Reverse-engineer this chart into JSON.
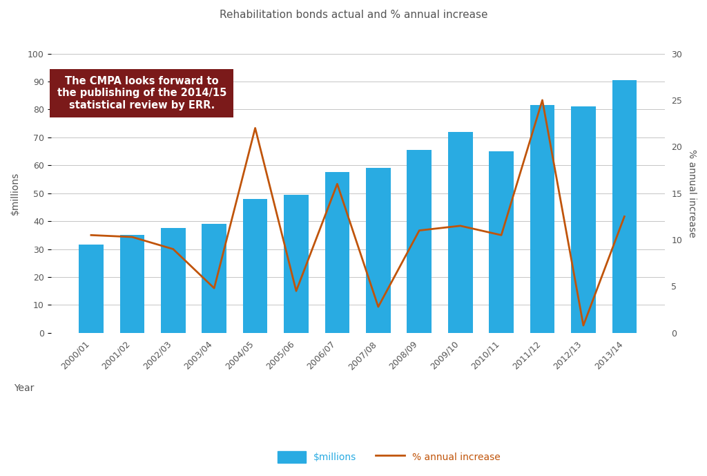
{
  "title": "Rehabilitation bonds actual and % annual increase",
  "categories": [
    "2000/01",
    "2001/02",
    "2002/03",
    "2003/04",
    "2004/05",
    "2005/06",
    "2006/07",
    "2007/08",
    "2008/09",
    "2009/10",
    "2010/11",
    "2011/12",
    "2012/13",
    "2013/14"
  ],
  "bar_values": [
    31.5,
    35.0,
    37.5,
    39.0,
    48.0,
    49.5,
    57.5,
    59.0,
    65.5,
    72.0,
    65.0,
    81.5,
    81.0,
    90.5
  ],
  "line_values": [
    10.5,
    10.3,
    9.0,
    4.8,
    22.0,
    4.5,
    16.0,
    2.8,
    11.0,
    11.5,
    10.5,
    25.0,
    0.8,
    12.5
  ],
  "bar_color": "#29ABE2",
  "line_color": "#C0540A",
  "ylim_left": [
    0,
    100
  ],
  "ylim_right": [
    0,
    30
  ],
  "yticks_left": [
    0,
    10,
    20,
    30,
    40,
    50,
    60,
    70,
    80,
    90,
    100
  ],
  "yticks_right": [
    0,
    5,
    10,
    15,
    20,
    25,
    30
  ],
  "ylabel_left": "$millions",
  "ylabel_right": "% annual increase",
  "xlabel": "Year",
  "annotation_text": "The CMPA looks forward to\nthe publishing of the 2014/15\nstatistical review by ERR.",
  "annotation_bg": "#7B1A1A",
  "annotation_text_color": "#FFFFFF",
  "background_color": "#FFFFFF",
  "grid_color": "#BBBBBB",
  "title_color": "#555555",
  "axis_label_color": "#555555",
  "tick_label_color": "#555555",
  "legend_bar_label": "$millions",
  "legend_line_label": "% annual increase"
}
